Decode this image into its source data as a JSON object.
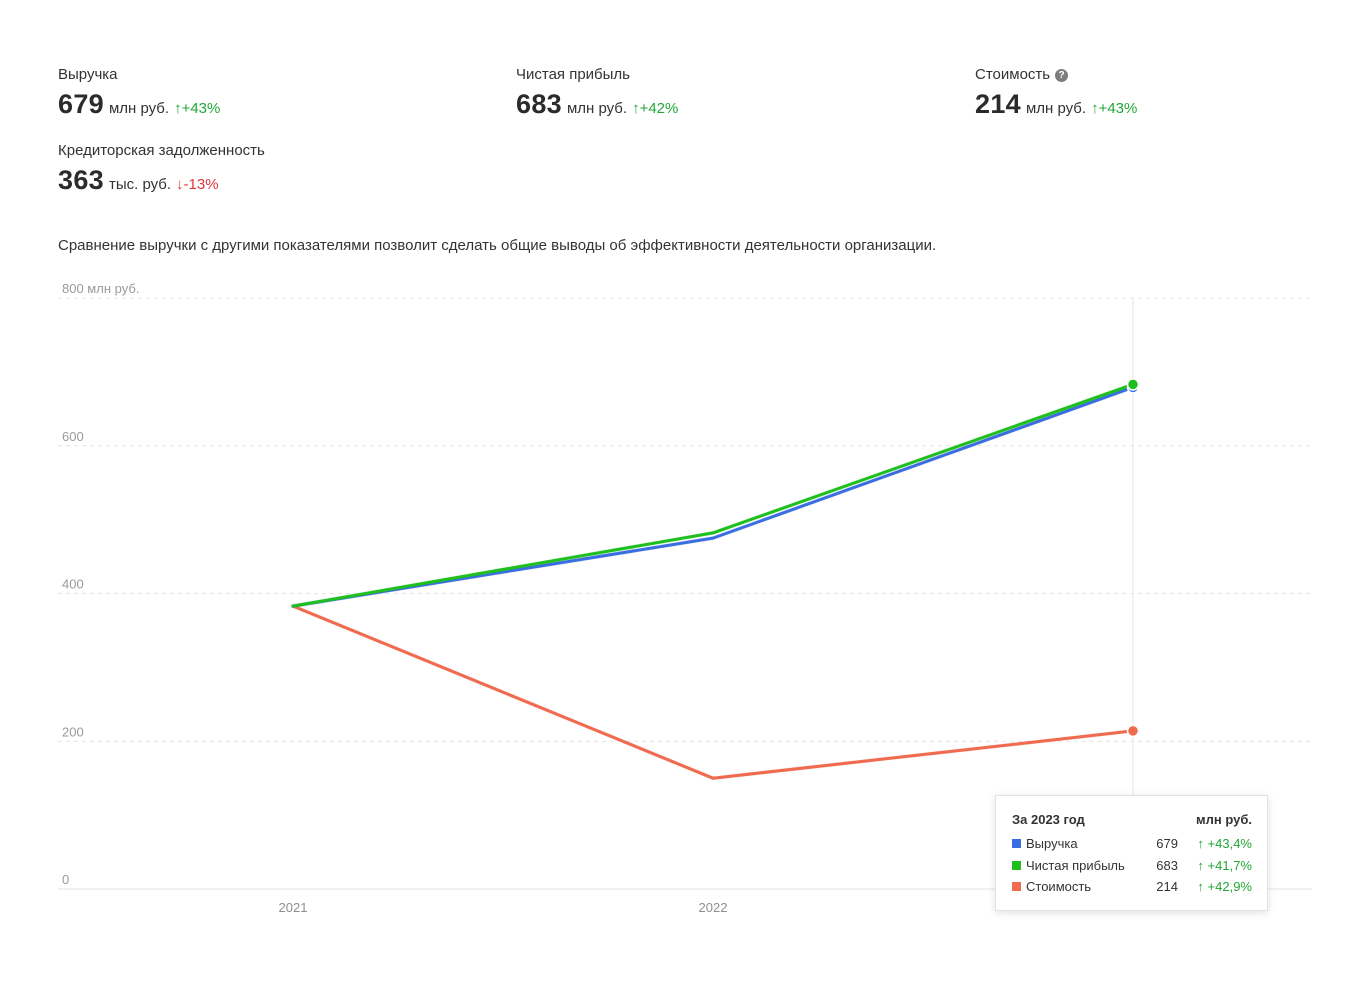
{
  "metrics": [
    {
      "label": "Выручка",
      "value": "679",
      "unit": "млн руб.",
      "change": "↑+43%",
      "direction": "up"
    },
    {
      "label": "Чистая прибыль",
      "value": "683",
      "unit": "млн руб.",
      "change": "↑+42%",
      "direction": "up"
    },
    {
      "label": "Стоимость",
      "value": "214",
      "unit": "млн руб.",
      "change": "↑+43%",
      "direction": "up",
      "help_icon": "?"
    },
    {
      "label": "Кредиторская задолженность",
      "value": "363",
      "unit": "тыс. руб.",
      "change": "↓-13%",
      "direction": "down"
    }
  ],
  "description": "Сравнение выручки с другими показателями позволит сделать общие выводы об эффективности деятельности организации.",
  "chart_data": {
    "type": "line",
    "x": [
      "2021",
      "2022",
      "2023"
    ],
    "x_tick_labels": [
      "2021",
      "2022",
      ""
    ],
    "ylim": [
      0,
      800
    ],
    "y_ticks": [
      0,
      200,
      400,
      600,
      800
    ],
    "y_tick_labels": [
      "0",
      "200",
      "400",
      "600",
      "800 млн руб."
    ],
    "grid": true,
    "series": [
      {
        "name": "Выручка",
        "color": "#3a6ee0",
        "values": [
          383,
          475,
          679
        ]
      },
      {
        "name": "Чистая прибыль",
        "color": "#1fbf1f",
        "values": [
          383,
          482,
          683
        ]
      },
      {
        "name": "Стоимость",
        "color": "#ef6a4f",
        "values": [
          383,
          150,
          214
        ]
      }
    ],
    "highlight_x": "2023",
    "tooltip": {
      "title": "За 2023 год",
      "unit": "млн руб.",
      "rows": [
        {
          "name": "Выручка",
          "color": "#3a6ee0",
          "value": "679",
          "change": "↑  +43,4%"
        },
        {
          "name": "Чистая прибыль",
          "color": "#1fbf1f",
          "value": "683",
          "change": "↑  +41,7%"
        },
        {
          "name": "Стоимость",
          "color": "#ef6a4f",
          "value": "214",
          "change": "↑  +42,9%"
        }
      ]
    }
  }
}
